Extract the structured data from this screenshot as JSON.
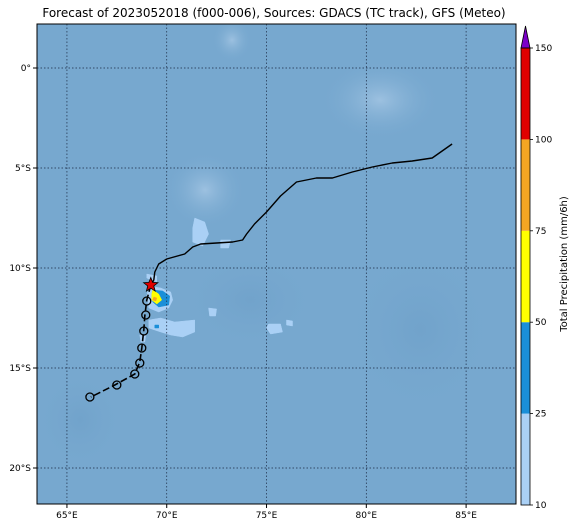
{
  "title": "Forecast of 2023052018 (f000-006), Sources: GDACS (TC track), GFS (Meteo)",
  "map": {
    "lon_range": [
      63.5,
      87.5
    ],
    "lat_range": [
      -21.8,
      2.2
    ],
    "lon_ticks": [
      {
        "value": 65,
        "label": "65°E"
      },
      {
        "value": 70,
        "label": "70°E"
      },
      {
        "value": 75,
        "label": "75°E"
      },
      {
        "value": 80,
        "label": "80°E"
      },
      {
        "value": 85,
        "label": "85°E"
      }
    ],
    "lat_ticks": [
      {
        "value": 0,
        "label": "0°"
      },
      {
        "value": -5,
        "label": "5°S"
      },
      {
        "value": -10,
        "label": "10°S"
      },
      {
        "value": -15,
        "label": "15°S"
      },
      {
        "value": -20,
        "label": "20°S"
      }
    ],
    "ocean_color": "#77a8cf",
    "grid": "dotted"
  },
  "track": {
    "past_path": [
      [
        84.3,
        -3.8
      ],
      [
        83.3,
        -4.5
      ],
      [
        82.3,
        -4.65
      ],
      [
        81.3,
        -4.75
      ],
      [
        80.3,
        -4.95
      ],
      [
        79.3,
        -5.2
      ],
      [
        78.3,
        -5.5
      ],
      [
        77.5,
        -5.5
      ],
      [
        76.5,
        -5.7
      ],
      [
        75.7,
        -6.4
      ],
      [
        75.0,
        -7.2
      ],
      [
        74.4,
        -7.8
      ],
      [
        74.0,
        -8.3
      ],
      [
        73.8,
        -8.6
      ],
      [
        73.3,
        -8.7
      ],
      [
        72.5,
        -8.75
      ],
      [
        71.7,
        -8.8
      ],
      [
        71.3,
        -8.95
      ],
      [
        70.9,
        -9.3
      ],
      [
        70.0,
        -9.55
      ],
      [
        69.6,
        -9.8
      ],
      [
        69.4,
        -10.2
      ],
      [
        69.35,
        -10.6
      ],
      [
        69.2,
        -10.85
      ]
    ],
    "current_position": [
      69.2,
      -10.85
    ],
    "forecast_path": [
      [
        69.2,
        -10.85
      ],
      [
        69.0,
        -11.6
      ],
      [
        68.9,
        -12.4
      ],
      [
        68.85,
        -13.1
      ],
      [
        68.75,
        -14.0
      ],
      [
        68.65,
        -14.7
      ],
      [
        68.4,
        -15.3
      ],
      [
        67.4,
        -15.85
      ],
      [
        66.2,
        -16.45
      ]
    ],
    "forecast_points": [
      [
        69.0,
        -11.65
      ],
      [
        68.95,
        -12.35
      ],
      [
        68.85,
        -13.15
      ],
      [
        68.75,
        -14.0
      ],
      [
        68.65,
        -14.75
      ],
      [
        68.4,
        -15.3
      ],
      [
        67.5,
        -15.85
      ],
      [
        66.15,
        -16.45
      ]
    ],
    "track_color": "#000000",
    "marker_color": "#e00000"
  },
  "precip_areas": [
    {
      "level": 10,
      "color": "#aad0f5",
      "polygon": [
        [
          69.0,
          -10.3
        ],
        [
          69.5,
          -10.4
        ],
        [
          69.5,
          -10.7
        ],
        [
          69.2,
          -10.6
        ],
        [
          69.0,
          -10.5
        ]
      ]
    },
    {
      "level": 10,
      "color": "#aad0f5",
      "polygon": [
        [
          69.1,
          -10.9
        ],
        [
          69.7,
          -11.0
        ],
        [
          70.2,
          -11.2
        ],
        [
          70.3,
          -11.6
        ],
        [
          70.1,
          -12.0
        ],
        [
          69.6,
          -12.2
        ],
        [
          69.1,
          -12.0
        ],
        [
          69.0,
          -11.4
        ]
      ]
    },
    {
      "level": 10,
      "color": "#aad0f5",
      "polygon": [
        [
          69.1,
          -12.6
        ],
        [
          69.7,
          -12.5
        ],
        [
          70.4,
          -12.7
        ],
        [
          71.4,
          -12.6
        ],
        [
          71.4,
          -13.2
        ],
        [
          70.8,
          -13.45
        ],
        [
          70.2,
          -13.35
        ],
        [
          69.7,
          -13.2
        ],
        [
          69.1,
          -13.0
        ]
      ]
    },
    {
      "level": 10,
      "color": "#aad0f5",
      "polygon": [
        [
          71.4,
          -7.5
        ],
        [
          71.9,
          -7.7
        ],
        [
          72.1,
          -8.3
        ],
        [
          71.8,
          -8.9
        ],
        [
          71.3,
          -8.7
        ],
        [
          71.3,
          -8.0
        ]
      ]
    },
    {
      "level": 10,
      "color": "#aad0f5",
      "polygon": [
        [
          72.7,
          -8.6
        ],
        [
          73.2,
          -8.6
        ],
        [
          73.1,
          -9.0
        ],
        [
          72.7,
          -9.0
        ]
      ]
    },
    {
      "level": 10,
      "color": "#aad0f5",
      "polygon": [
        [
          72.1,
          -12.0
        ],
        [
          72.5,
          -12.05
        ],
        [
          72.45,
          -12.4
        ],
        [
          72.15,
          -12.4
        ]
      ]
    },
    {
      "level": 10,
      "color": "#aad0f5",
      "polygon": [
        [
          75.1,
          -12.8
        ],
        [
          75.7,
          -12.8
        ],
        [
          75.8,
          -13.2
        ],
        [
          75.2,
          -13.3
        ],
        [
          75.0,
          -13.0
        ]
      ]
    },
    {
      "level": 10,
      "color": "#aad0f5",
      "polygon": [
        [
          76.0,
          -12.6
        ],
        [
          76.3,
          -12.65
        ],
        [
          76.3,
          -12.9
        ],
        [
          76.0,
          -12.85
        ]
      ]
    },
    {
      "level": 10,
      "color": "#aad0f5",
      "polygon": [
        [
          68.65,
          -13.35
        ],
        [
          68.95,
          -13.35
        ],
        [
          68.9,
          -13.7
        ],
        [
          68.7,
          -13.7
        ]
      ]
    },
    {
      "level": 25,
      "color": "#1a8fd8",
      "polygon": [
        [
          69.3,
          -11.1
        ],
        [
          69.8,
          -11.15
        ],
        [
          70.15,
          -11.4
        ],
        [
          70.1,
          -11.85
        ],
        [
          69.6,
          -11.95
        ],
        [
          69.3,
          -11.7
        ],
        [
          69.25,
          -11.4
        ]
      ]
    },
    {
      "level": 25,
      "color": "#1a8fd8",
      "polygon": [
        [
          69.4,
          -12.85
        ],
        [
          69.6,
          -12.85
        ],
        [
          69.6,
          -13.0
        ],
        [
          69.4,
          -13.0
        ]
      ]
    },
    {
      "level": 50,
      "color": "#ffff00",
      "polygon": [
        [
          69.3,
          -11.1
        ],
        [
          69.6,
          -11.3
        ],
        [
          69.75,
          -11.6
        ],
        [
          69.5,
          -11.8
        ],
        [
          69.25,
          -11.6
        ],
        [
          69.25,
          -11.3
        ]
      ]
    },
    {
      "level": 75,
      "color": "#f5a623",
      "polygon": [
        [
          69.35,
          -11.45
        ],
        [
          69.5,
          -11.5
        ],
        [
          69.45,
          -11.65
        ],
        [
          69.3,
          -11.6
        ]
      ]
    }
  ],
  "colorbar": {
    "label": "Total Precipitation (mm/6h)",
    "ticks": [
      10,
      25,
      50,
      75,
      100,
      150
    ],
    "bins": [
      {
        "from": 10,
        "to": 25,
        "color": "#aad0f5"
      },
      {
        "from": 25,
        "to": 50,
        "color": "#1a8fd8"
      },
      {
        "from": 50,
        "to": 75,
        "color": "#ffff00"
      },
      {
        "from": 75,
        "to": 100,
        "color": "#f5a623"
      },
      {
        "from": 100,
        "to": 150,
        "color": "#e00000"
      }
    ],
    "extend_color": "#7b00c8"
  }
}
